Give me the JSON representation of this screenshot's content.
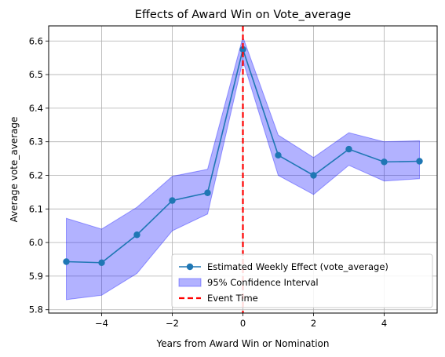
{
  "chart_data": {
    "type": "line",
    "title": "Effects of Award Win on Vote_average",
    "xlabel": "Years from Award Win or Nomination",
    "ylabel": "Average vote_average",
    "xlim": [
      -5.5,
      5.5
    ],
    "ylim": [
      5.79,
      6.645
    ],
    "x_ticks": [
      -4,
      -2,
      0,
      2,
      4
    ],
    "x_tick_labels": [
      "−4",
      "−2",
      "0",
      "2",
      "4"
    ],
    "y_ticks": [
      5.8,
      5.9,
      6.0,
      6.1,
      6.2,
      6.3,
      6.4,
      6.5,
      6.6
    ],
    "y_tick_labels": [
      "5.8",
      "5.9",
      "6.0",
      "6.1",
      "6.2",
      "6.3",
      "6.4",
      "6.5",
      "6.6"
    ],
    "grid": true,
    "legend_position": "lower-right",
    "series": [
      {
        "name": "Estimated Weekly Effect (vote_average)",
        "kind": "line-marker",
        "color": "#1f77b4",
        "x": [
          -5,
          -4,
          -3,
          -2,
          -1,
          0,
          1,
          2,
          3,
          4,
          5
        ],
        "y": [
          5.943,
          5.94,
          6.023,
          6.125,
          6.148,
          6.575,
          6.26,
          6.2,
          6.278,
          6.24,
          6.242
        ]
      },
      {
        "name": "95% Confidence Interval",
        "kind": "band",
        "color": "#0000ff",
        "x": [
          -5,
          -4,
          -3,
          -2,
          -1,
          0,
          1,
          2,
          3,
          4,
          5
        ],
        "lower": [
          5.83,
          5.843,
          5.908,
          6.035,
          6.085,
          6.542,
          6.2,
          6.143,
          6.23,
          6.183,
          6.19
        ],
        "upper": [
          6.072,
          6.04,
          6.105,
          6.197,
          6.218,
          6.612,
          6.32,
          6.253,
          6.327,
          6.3,
          6.303
        ]
      },
      {
        "name": "Event Time",
        "kind": "vline",
        "color": "#ff0000",
        "x": 0
      }
    ]
  }
}
